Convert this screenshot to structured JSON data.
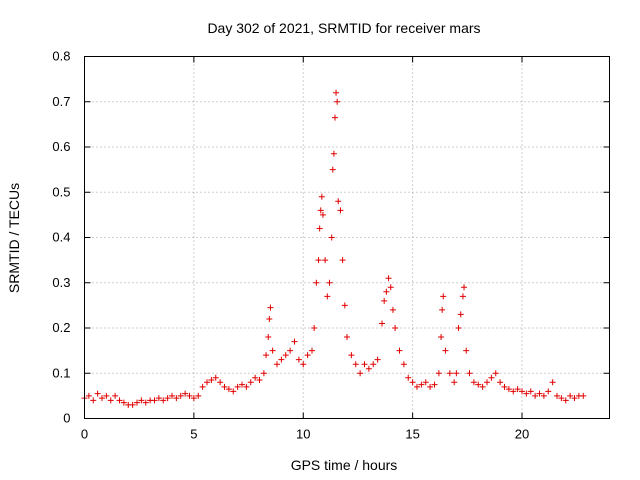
{
  "chart_data": {
    "type": "scatter",
    "title": "Day 302 of 2021, SRMTID for receiver mars",
    "xlabel": "GPS time / hours",
    "ylabel": "SRMTID / TECUs",
    "xlim": [
      0,
      24
    ],
    "ylim": [
      0,
      0.8
    ],
    "xticks": [
      0,
      5,
      10,
      15,
      20
    ],
    "xtick_labels": [
      "0",
      "5",
      "10",
      "15",
      "20"
    ],
    "yticks": [
      0,
      0.1,
      0.2,
      0.3,
      0.4,
      0.5,
      0.6,
      0.7,
      0.8
    ],
    "ytick_labels": [
      "0",
      "0.1",
      "0.2",
      "0.3",
      "0.4",
      "0.5",
      "0.6",
      "0.7",
      "0.8"
    ],
    "grid": true,
    "marker": "+",
    "color": "#e00000",
    "series": [
      {
        "name": "SRMTID",
        "points": [
          [
            0.0,
            0.045
          ],
          [
            0.2,
            0.05
          ],
          [
            0.4,
            0.04
          ],
          [
            0.6,
            0.055
          ],
          [
            0.8,
            0.045
          ],
          [
            1.0,
            0.05
          ],
          [
            1.2,
            0.04
          ],
          [
            1.4,
            0.05
          ],
          [
            1.6,
            0.04
          ],
          [
            1.8,
            0.035
          ],
          [
            2.0,
            0.03
          ],
          [
            2.2,
            0.03
          ],
          [
            2.4,
            0.035
          ],
          [
            2.6,
            0.04
          ],
          [
            2.8,
            0.035
          ],
          [
            3.0,
            0.04
          ],
          [
            3.2,
            0.04
          ],
          [
            3.4,
            0.045
          ],
          [
            3.6,
            0.04
          ],
          [
            3.8,
            0.045
          ],
          [
            4.0,
            0.05
          ],
          [
            4.2,
            0.045
          ],
          [
            4.4,
            0.05
          ],
          [
            4.6,
            0.055
          ],
          [
            4.8,
            0.05
          ],
          [
            5.0,
            0.045
          ],
          [
            5.2,
            0.05
          ],
          [
            5.4,
            0.07
          ],
          [
            5.6,
            0.08
          ],
          [
            5.8,
            0.085
          ],
          [
            6.0,
            0.09
          ],
          [
            6.2,
            0.08
          ],
          [
            6.4,
            0.07
          ],
          [
            6.6,
            0.065
          ],
          [
            6.8,
            0.06
          ],
          [
            7.0,
            0.07
          ],
          [
            7.2,
            0.075
          ],
          [
            7.4,
            0.07
          ],
          [
            7.6,
            0.08
          ],
          [
            7.8,
            0.09
          ],
          [
            8.0,
            0.085
          ],
          [
            8.2,
            0.1
          ],
          [
            8.3,
            0.14
          ],
          [
            8.4,
            0.18
          ],
          [
            8.45,
            0.22
          ],
          [
            8.5,
            0.245
          ],
          [
            8.6,
            0.15
          ],
          [
            8.8,
            0.12
          ],
          [
            9.0,
            0.13
          ],
          [
            9.2,
            0.14
          ],
          [
            9.4,
            0.15
          ],
          [
            9.6,
            0.17
          ],
          [
            9.8,
            0.13
          ],
          [
            10.0,
            0.12
          ],
          [
            10.2,
            0.14
          ],
          [
            10.4,
            0.15
          ],
          [
            10.5,
            0.2
          ],
          [
            10.6,
            0.3
          ],
          [
            10.7,
            0.35
          ],
          [
            10.75,
            0.42
          ],
          [
            10.8,
            0.46
          ],
          [
            10.85,
            0.49
          ],
          [
            10.9,
            0.45
          ],
          [
            11.0,
            0.35
          ],
          [
            11.1,
            0.27
          ],
          [
            11.2,
            0.3
          ],
          [
            11.3,
            0.4
          ],
          [
            11.35,
            0.55
          ],
          [
            11.4,
            0.585
          ],
          [
            11.45,
            0.665
          ],
          [
            11.5,
            0.72
          ],
          [
            11.55,
            0.7
          ],
          [
            11.6,
            0.48
          ],
          [
            11.7,
            0.46
          ],
          [
            11.8,
            0.35
          ],
          [
            11.9,
            0.25
          ],
          [
            12.0,
            0.18
          ],
          [
            12.2,
            0.14
          ],
          [
            12.4,
            0.12
          ],
          [
            12.6,
            0.1
          ],
          [
            12.8,
            0.12
          ],
          [
            13.0,
            0.11
          ],
          [
            13.2,
            0.12
          ],
          [
            13.4,
            0.13
          ],
          [
            13.6,
            0.21
          ],
          [
            13.7,
            0.26
          ],
          [
            13.8,
            0.28
          ],
          [
            13.9,
            0.31
          ],
          [
            14.0,
            0.29
          ],
          [
            14.1,
            0.24
          ],
          [
            14.2,
            0.2
          ],
          [
            14.4,
            0.15
          ],
          [
            14.6,
            0.12
          ],
          [
            14.8,
            0.09
          ],
          [
            15.0,
            0.08
          ],
          [
            15.2,
            0.07
          ],
          [
            15.4,
            0.075
          ],
          [
            15.6,
            0.08
          ],
          [
            15.8,
            0.07
          ],
          [
            16.0,
            0.075
          ],
          [
            16.2,
            0.1
          ],
          [
            16.3,
            0.18
          ],
          [
            16.35,
            0.24
          ],
          [
            16.4,
            0.27
          ],
          [
            16.5,
            0.15
          ],
          [
            16.7,
            0.1
          ],
          [
            16.9,
            0.08
          ],
          [
            17.0,
            0.1
          ],
          [
            17.1,
            0.2
          ],
          [
            17.2,
            0.23
          ],
          [
            17.3,
            0.27
          ],
          [
            17.35,
            0.29
          ],
          [
            17.45,
            0.15
          ],
          [
            17.6,
            0.1
          ],
          [
            17.8,
            0.08
          ],
          [
            18.0,
            0.075
          ],
          [
            18.2,
            0.07
          ],
          [
            18.4,
            0.08
          ],
          [
            18.6,
            0.09
          ],
          [
            18.8,
            0.1
          ],
          [
            19.0,
            0.08
          ],
          [
            19.2,
            0.07
          ],
          [
            19.4,
            0.065
          ],
          [
            19.6,
            0.06
          ],
          [
            19.8,
            0.065
          ],
          [
            20.0,
            0.06
          ],
          [
            20.2,
            0.055
          ],
          [
            20.4,
            0.06
          ],
          [
            20.6,
            0.05
          ],
          [
            20.8,
            0.055
          ],
          [
            21.0,
            0.05
          ],
          [
            21.2,
            0.06
          ],
          [
            21.4,
            0.08
          ],
          [
            21.6,
            0.05
          ],
          [
            21.8,
            0.045
          ],
          [
            22.0,
            0.04
          ],
          [
            22.2,
            0.05
          ],
          [
            22.4,
            0.045
          ],
          [
            22.6,
            0.05
          ],
          [
            22.8,
            0.05
          ]
        ]
      }
    ]
  }
}
